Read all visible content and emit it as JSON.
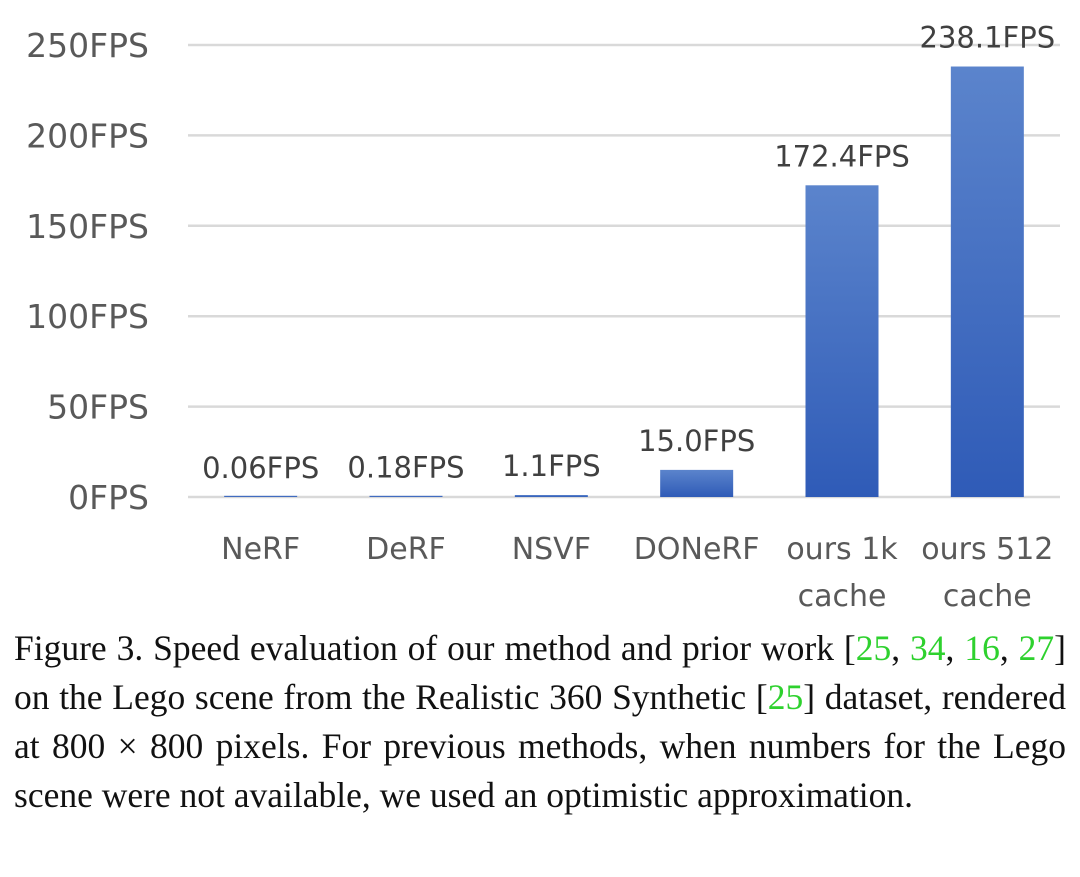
{
  "chart_data": {
    "type": "bar",
    "categories": [
      [
        "NeRF"
      ],
      [
        "DeRF"
      ],
      [
        "NSVF"
      ],
      [
        "DONeRF"
      ],
      [
        "ours 1k",
        "cache"
      ],
      [
        "ours 512",
        "cache"
      ]
    ],
    "values": [
      0.06,
      0.18,
      1.1,
      15.0,
      172.4,
      238.1
    ],
    "data_labels": [
      "0.06FPS",
      "0.18FPS",
      "1.1FPS",
      "15.0FPS",
      "172.4FPS",
      "238.1FPS"
    ],
    "ytick_values": [
      0,
      50,
      100,
      150,
      200,
      250
    ],
    "ytick_labels": [
      "0FPS",
      "50FPS",
      "100FPS",
      "150FPS",
      "200FPS",
      "250FPS"
    ],
    "ylim": [
      0,
      250
    ],
    "grid": true,
    "bar_color": "#4472c4",
    "title": "",
    "xlabel": "",
    "ylabel": ""
  },
  "caption": {
    "prefix": "Figure 3. Speed evaluation of our method and prior work [",
    "cite1": "25",
    "sep1": ", ",
    "cite2": "34",
    "sep2": ", ",
    "cite3": "16",
    "sep3": ", ",
    "cite4": "27",
    "mid": "] on the Lego scene from the Realistic 360 Synthetic [",
    "cite5": "25",
    "suffix": "] dataset, rendered at 800 × 800 pixels. For previous methods, when numbers for the Lego scene were not available, we used an optimistic approximation."
  },
  "colors": {
    "citation": "#2ed12e",
    "gridline": "#d9d9d9",
    "tick_text": "#595959"
  }
}
